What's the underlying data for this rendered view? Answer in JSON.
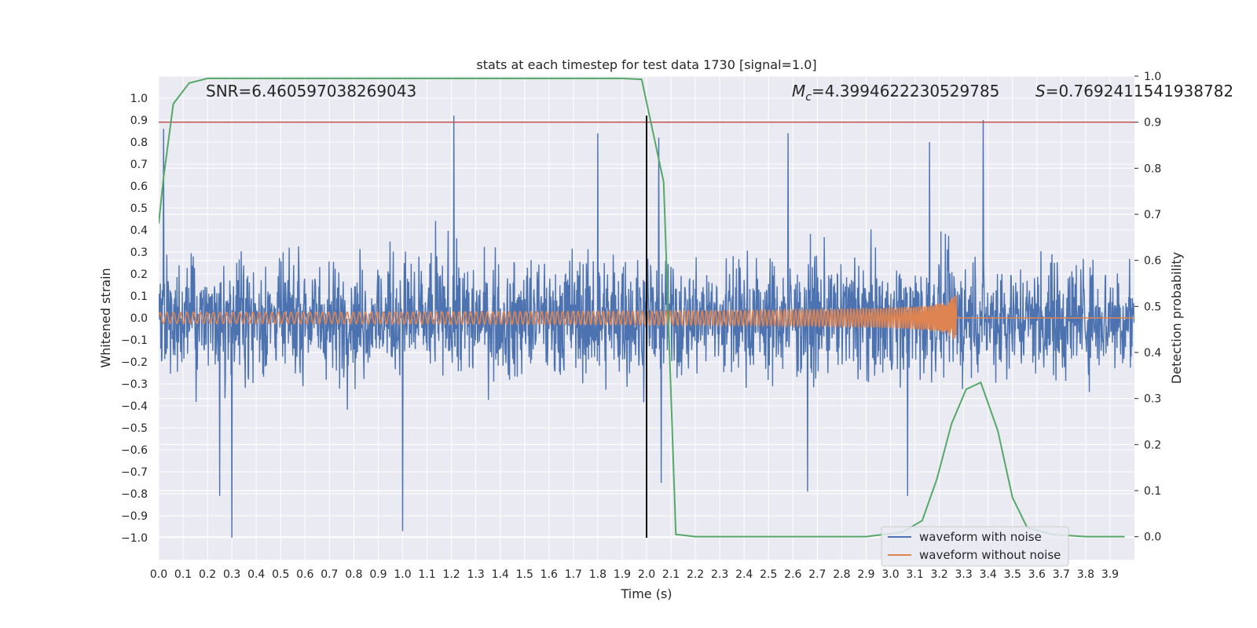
{
  "chart_data": {
    "type": "line",
    "title": "stats at each timestep for test data 1730 [signal=1.0]",
    "xlabel": "Time (s)",
    "ylabel": "Whitened strain",
    "y2label": "Detection probability",
    "xlim": [
      0.0,
      4.0
    ],
    "ylim": [
      -1.1,
      1.1
    ],
    "y2lim": [
      -0.05,
      1.0
    ],
    "xticks": [
      "0.0",
      "0.1",
      "0.2",
      "0.3",
      "0.4",
      "0.5",
      "0.6",
      "0.7",
      "0.8",
      "0.9",
      "1.0",
      "1.1",
      "1.2",
      "1.3",
      "1.4",
      "1.5",
      "1.6",
      "1.7",
      "1.8",
      "1.9",
      "2.0",
      "2.1",
      "2.2",
      "2.3",
      "2.4",
      "2.5",
      "2.6",
      "2.7",
      "2.8",
      "2.9",
      "3.0",
      "3.1",
      "3.2",
      "3.3",
      "3.4",
      "3.5",
      "3.6",
      "3.7",
      "3.8",
      "3.9"
    ],
    "yticks": [
      "1.0",
      "0.9",
      "0.8",
      "0.7",
      "0.6",
      "0.5",
      "0.4",
      "0.3",
      "0.2",
      "0.1",
      "0.0",
      "−0.1",
      "−0.2",
      "−0.3",
      "−0.4",
      "−0.5",
      "−0.6",
      "−0.7",
      "−0.8",
      "−0.9",
      "−1.0"
    ],
    "y2ticks": [
      "1.0",
      "0.9",
      "0.8",
      "0.7",
      "0.6",
      "0.5",
      "0.4",
      "0.3",
      "0.2",
      "0.1",
      "0.0"
    ],
    "grid": true,
    "legend_location": "lower-right",
    "annotations": {
      "snr": "SNR=6.460597038269043",
      "mc_symbol": "M",
      "mc_sub": "c",
      "mc_value": "=4.3994622230529785",
      "s_symbol": "S",
      "s_value": "=0.7692411541938782"
    },
    "threshold_line": {
      "axis": "y2",
      "value": 0.9,
      "color": "#c44e52"
    },
    "merger_marker": {
      "x": 2.0,
      "ymin": -1.0,
      "ymax": 0.92,
      "color": "#000000"
    },
    "series": [
      {
        "name": "waveform with noise",
        "axis": "y",
        "color": "#4c72b0",
        "description_range": [
          -1.0,
          0.92
        ],
        "peaks": [
          {
            "x": 0.02,
            "y": 0.86
          },
          {
            "x": 0.3,
            "y": -1.0
          },
          {
            "x": 0.25,
            "y": -0.81
          },
          {
            "x": 1.0,
            "y": -0.97
          },
          {
            "x": 1.21,
            "y": 0.92
          },
          {
            "x": 1.8,
            "y": 0.84
          },
          {
            "x": 2.05,
            "y": 0.82
          },
          {
            "x": 2.06,
            "y": -0.75
          },
          {
            "x": 2.58,
            "y": 0.84
          },
          {
            "x": 2.66,
            "y": -0.79
          },
          {
            "x": 3.07,
            "y": -0.81
          },
          {
            "x": 3.16,
            "y": 0.8
          },
          {
            "x": 3.38,
            "y": 0.9
          }
        ]
      },
      {
        "name": "waveform without noise",
        "axis": "y",
        "color": "#dd8452",
        "description": "chirp: amplitude ~0.025 rising to ~0.15 at merger near t=3.27 s, then ~0"
      },
      {
        "name": "detection probability",
        "axis": "y2",
        "color": "#55a868",
        "x": [
          0.0,
          0.02,
          0.06,
          0.125,
          0.2,
          0.3,
          0.5,
          1.0,
          1.5,
          1.9,
          1.98,
          2.07,
          2.12,
          2.2,
          2.5,
          2.9,
          3.05,
          3.13,
          3.19,
          3.25,
          3.31,
          3.37,
          3.44,
          3.5,
          3.56,
          3.66,
          3.8,
          3.96
        ],
        "values": [
          0.68,
          0.78,
          0.94,
          0.985,
          0.995,
          0.995,
          0.995,
          0.995,
          0.995,
          0.995,
          0.993,
          0.77,
          0.005,
          0.0,
          0.0,
          0.0,
          0.01,
          0.035,
          0.125,
          0.245,
          0.32,
          0.335,
          0.23,
          0.085,
          0.02,
          0.005,
          0.0,
          0.0
        ]
      }
    ]
  }
}
